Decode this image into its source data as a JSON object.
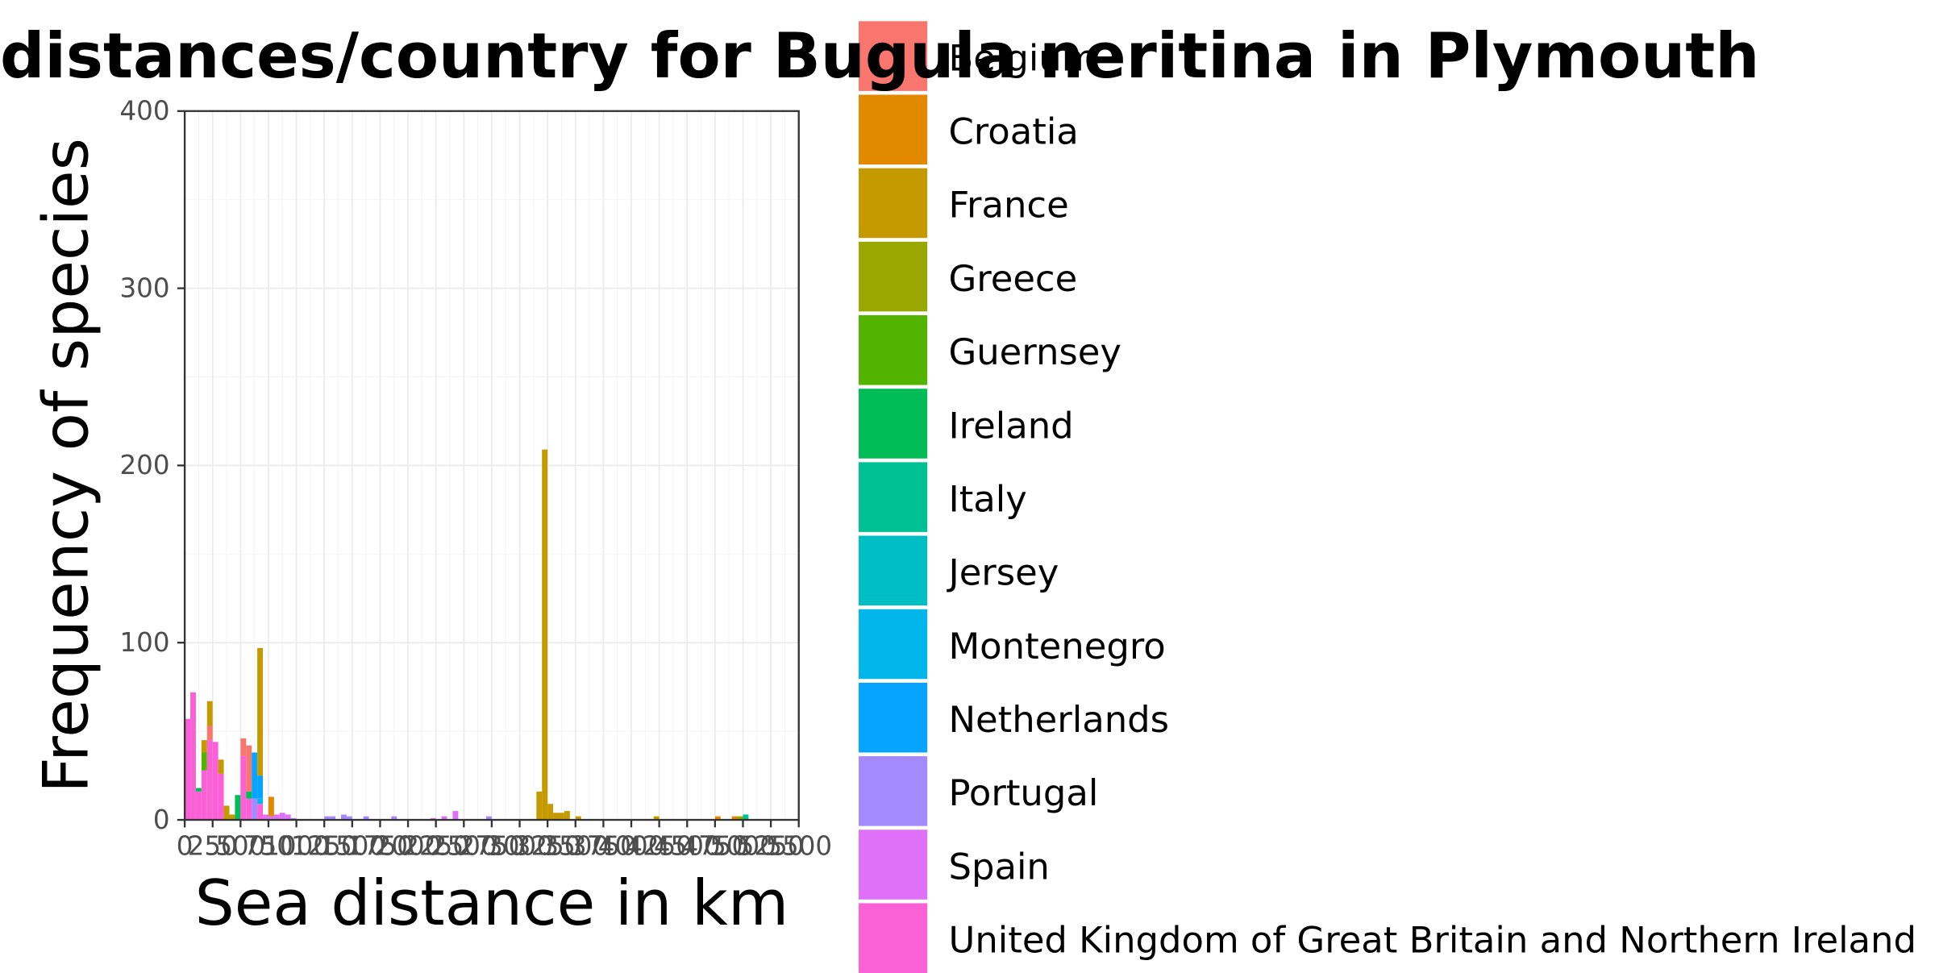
{
  "chart_data": {
    "type": "bar",
    "stacked": true,
    "title": "distances/country for Bugula neritina in Plymouth",
    "xlabel": "Sea distance in km",
    "ylabel": "Frequency of species",
    "xlim": [
      0,
      5500
    ],
    "ylim": [
      0,
      400
    ],
    "x_ticks": [
      0,
      250,
      500,
      750,
      1000,
      1250,
      1500,
      1750,
      2000,
      2250,
      2500,
      2750,
      3000,
      3250,
      3500,
      3750,
      4000,
      4250,
      4500,
      4750,
      5000,
      5250,
      5500
    ],
    "y_ticks": [
      0,
      100,
      200,
      300,
      400
    ],
    "bin_width": 50,
    "grid": true,
    "legend": {
      "position": "right",
      "title": "",
      "entries": [
        {
          "name": "Belgium",
          "color": "#F8766D"
        },
        {
          "name": "Croatia",
          "color": "#E38900"
        },
        {
          "name": "France",
          "color": "#C49A00"
        },
        {
          "name": "Greece",
          "color": "#99A800"
        },
        {
          "name": "Guernsey",
          "color": "#53B400"
        },
        {
          "name": "Ireland",
          "color": "#00BC56"
        },
        {
          "name": "Italy",
          "color": "#00C094"
        },
        {
          "name": "Jersey",
          "color": "#00BFC4"
        },
        {
          "name": "Montenegro",
          "color": "#00B6EB"
        },
        {
          "name": "Netherlands",
          "color": "#06A4FF"
        },
        {
          "name": "Portugal",
          "color": "#A58AFF"
        },
        {
          "name": "Spain",
          "color": "#DF70F8"
        },
        {
          "name": "United Kingdom of Great Britain and Northern Ireland",
          "color": "#FB61D7"
        }
      ]
    },
    "bins": [
      {
        "x": 0,
        "segments": [
          {
            "c": "United Kingdom of Great Britain and Northern Ireland",
            "v": 57
          }
        ]
      },
      {
        "x": 50,
        "segments": [
          {
            "c": "United Kingdom of Great Britain and Northern Ireland",
            "v": 72
          }
        ]
      },
      {
        "x": 100,
        "segments": [
          {
            "c": "United Kingdom of Great Britain and Northern Ireland",
            "v": 16
          },
          {
            "c": "Ireland",
            "v": 2
          }
        ]
      },
      {
        "x": 150,
        "segments": [
          {
            "c": "United Kingdom of Great Britain and Northern Ireland",
            "v": 28
          },
          {
            "c": "Guernsey",
            "v": 10
          },
          {
            "c": "France",
            "v": 7
          }
        ]
      },
      {
        "x": 200,
        "segments": [
          {
            "c": "United Kingdom of Great Britain and Northern Ireland",
            "v": 45
          },
          {
            "c": "Belgium",
            "v": 8
          },
          {
            "c": "France",
            "v": 14
          }
        ]
      },
      {
        "x": 250,
        "segments": [
          {
            "c": "United Kingdom of Great Britain and Northern Ireland",
            "v": 44
          }
        ]
      },
      {
        "x": 300,
        "segments": [
          {
            "c": "United Kingdom of Great Britain and Northern Ireland",
            "v": 26
          },
          {
            "c": "France",
            "v": 8
          }
        ]
      },
      {
        "x": 350,
        "segments": [
          {
            "c": "France",
            "v": 8
          }
        ]
      },
      {
        "x": 400,
        "segments": [
          {
            "c": "France",
            "v": 3
          }
        ]
      },
      {
        "x": 450,
        "segments": [
          {
            "c": "Ireland",
            "v": 14
          }
        ]
      },
      {
        "x": 500,
        "segments": [
          {
            "c": "United Kingdom of Great Britain and Northern Ireland",
            "v": 36
          },
          {
            "c": "Belgium",
            "v": 10
          }
        ]
      },
      {
        "x": 550,
        "segments": [
          {
            "c": "United Kingdom of Great Britain and Northern Ireland",
            "v": 12
          },
          {
            "c": "Ireland",
            "v": 4
          },
          {
            "c": "Belgium",
            "v": 26
          }
        ]
      },
      {
        "x": 600,
        "segments": [
          {
            "c": "Portugal",
            "v": 12
          },
          {
            "c": "Netherlands",
            "v": 26
          }
        ]
      },
      {
        "x": 650,
        "segments": [
          {
            "c": "United Kingdom of Great Britain and Northern Ireland",
            "v": 9
          },
          {
            "c": "Montenegro",
            "v": 3
          },
          {
            "c": "Netherlands",
            "v": 13
          },
          {
            "c": "France",
            "v": 72
          }
        ]
      },
      {
        "x": 700,
        "segments": [
          {
            "c": "Spain",
            "v": 3
          }
        ]
      },
      {
        "x": 750,
        "segments": [
          {
            "c": "Spain",
            "v": 2
          },
          {
            "c": "Croatia",
            "v": 11
          }
        ]
      },
      {
        "x": 800,
        "segments": [
          {
            "c": "Spain",
            "v": 3
          }
        ]
      },
      {
        "x": 850,
        "segments": [
          {
            "c": "Spain",
            "v": 4
          }
        ]
      },
      {
        "x": 900,
        "segments": [
          {
            "c": "Spain",
            "v": 3
          }
        ]
      },
      {
        "x": 950,
        "segments": [
          {
            "c": "Portugal",
            "v": 1
          }
        ]
      },
      {
        "x": 1250,
        "segments": [
          {
            "c": "Portugal",
            "v": 2
          }
        ]
      },
      {
        "x": 1300,
        "segments": [
          {
            "c": "Portugal",
            "v": 2
          }
        ]
      },
      {
        "x": 1400,
        "segments": [
          {
            "c": "Portugal",
            "v": 3
          }
        ]
      },
      {
        "x": 1450,
        "segments": [
          {
            "c": "Portugal",
            "v": 2
          }
        ]
      },
      {
        "x": 1600,
        "segments": [
          {
            "c": "Portugal",
            "v": 2
          }
        ]
      },
      {
        "x": 1850,
        "segments": [
          {
            "c": "Portugal",
            "v": 2
          }
        ]
      },
      {
        "x": 2200,
        "segments": [
          {
            "c": "Spain",
            "v": 1
          }
        ]
      },
      {
        "x": 2300,
        "segments": [
          {
            "c": "Spain",
            "v": 2
          }
        ]
      },
      {
        "x": 2400,
        "segments": [
          {
            "c": "Spain",
            "v": 5
          }
        ]
      },
      {
        "x": 2700,
        "segments": [
          {
            "c": "Portugal",
            "v": 2
          }
        ]
      },
      {
        "x": 3150,
        "segments": [
          {
            "c": "France",
            "v": 16
          }
        ]
      },
      {
        "x": 3200,
        "segments": [
          {
            "c": "France",
            "v": 209
          }
        ]
      },
      {
        "x": 3250,
        "segments": [
          {
            "c": "France",
            "v": 9
          }
        ]
      },
      {
        "x": 3300,
        "segments": [
          {
            "c": "France",
            "v": 4
          }
        ]
      },
      {
        "x": 3350,
        "segments": [
          {
            "c": "France",
            "v": 4
          }
        ]
      },
      {
        "x": 3400,
        "segments": [
          {
            "c": "France",
            "v": 5
          }
        ]
      },
      {
        "x": 3500,
        "segments": [
          {
            "c": "France",
            "v": 2
          }
        ]
      },
      {
        "x": 4200,
        "segments": [
          {
            "c": "France",
            "v": 2
          }
        ]
      },
      {
        "x": 4750,
        "segments": [
          {
            "c": "Croatia",
            "v": 2
          }
        ]
      },
      {
        "x": 4900,
        "segments": [
          {
            "c": "Croatia",
            "v": 2
          }
        ]
      },
      {
        "x": 4950,
        "segments": [
          {
            "c": "Greece",
            "v": 2
          }
        ]
      },
      {
        "x": 5000,
        "segments": [
          {
            "c": "Italy",
            "v": 3
          }
        ]
      }
    ]
  }
}
